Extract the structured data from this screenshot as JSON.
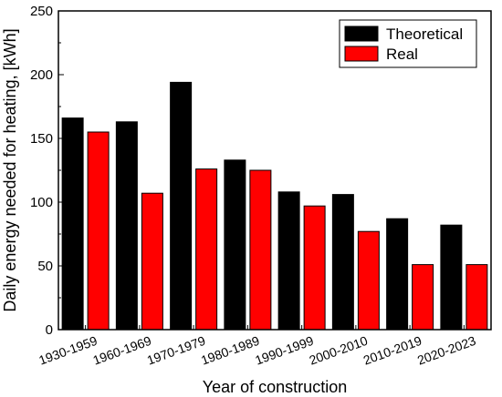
{
  "chart_data": {
    "type": "bar",
    "categories": [
      "1930-1959",
      "1960-1969",
      "1970-1979",
      "1980-1989",
      "1990-1999",
      "2000-2010",
      "2010-2019",
      "2020-2023"
    ],
    "series": [
      {
        "name": "Theoretical",
        "color": "#000000",
        "values": [
          166,
          163,
          194,
          133,
          108,
          106,
          87,
          82
        ]
      },
      {
        "name": "Real",
        "color": "#ff0000",
        "values": [
          155,
          107,
          126,
          125,
          97,
          77,
          51,
          51
        ]
      }
    ],
    "xlabel": "Year of construction",
    "ylabel": "Daily energy needed for heating, [kWh]",
    "ylim": [
      0,
      250
    ],
    "yticks": [
      0,
      50,
      100,
      150,
      200,
      250
    ],
    "grid": false,
    "legend_position": "top-right"
  }
}
